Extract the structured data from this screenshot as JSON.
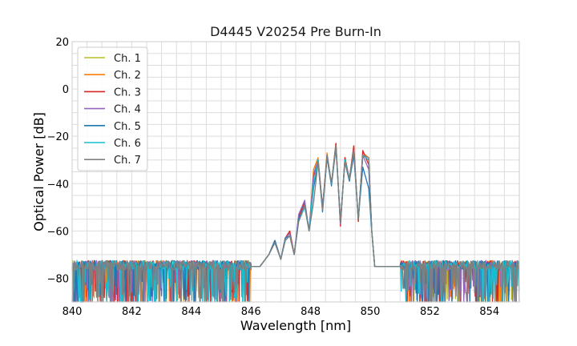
{
  "chart_data": {
    "type": "line",
    "title": "D4445 V20254 Pre Burn-In",
    "xlabel": "Wavelength [nm]",
    "ylabel": "Optical Power [dB]",
    "xlim": [
      840,
      855
    ],
    "ylim": [
      -90,
      20
    ],
    "xticks": [
      840,
      842,
      844,
      846,
      848,
      850,
      852,
      854
    ],
    "xtick_labels": [
      "840",
      "842",
      "844",
      "846",
      "848",
      "850",
      "852",
      "854"
    ],
    "yticks": [
      20,
      0,
      -20,
      -40,
      -60,
      -80
    ],
    "ytick_labels": [
      "20",
      "0",
      "−20",
      "−40",
      "−60",
      "−80"
    ],
    "grid": true,
    "legend_position": "top-left",
    "noise_floor_db": -75,
    "x": [
      846.0,
      846.3,
      846.6,
      846.8,
      847.0,
      847.15,
      847.3,
      847.45,
      847.6,
      847.8,
      847.95,
      848.1,
      848.25,
      848.4,
      848.55,
      848.7,
      848.85,
      849.0,
      849.15,
      849.3,
      849.45,
      849.6,
      849.75,
      849.95,
      850.05,
      850.15,
      850.3,
      850.6,
      851.0
    ],
    "series": [
      {
        "name": "Ch. 1",
        "color": "#bcbd22",
        "values": [
          -75,
          -75,
          -70,
          -64,
          -72,
          -63,
          -61,
          -70,
          -55,
          -50,
          -60,
          -34,
          -30,
          -50,
          -28,
          -40,
          -23,
          -57,
          -30,
          -38,
          -25,
          -56,
          -28,
          -30,
          -60,
          -75,
          -75,
          -75,
          -75
        ]
      },
      {
        "name": "Ch. 2",
        "color": "#ff7f0e",
        "values": [
          -75,
          -75,
          -70,
          -64,
          -72,
          -63,
          -60,
          -70,
          -55,
          -49,
          -60,
          -34,
          -29,
          -50,
          -27,
          -40,
          -23,
          -57,
          -29,
          -38,
          -24,
          -56,
          -27,
          -29,
          -60,
          -75,
          -75,
          -75,
          -75
        ]
      },
      {
        "name": "Ch. 3",
        "color": "#d62728",
        "values": [
          -75,
          -75,
          -70,
          -64,
          -72,
          -63,
          -60,
          -70,
          -54,
          -48,
          -60,
          -37,
          -30,
          -50,
          -28,
          -40,
          -23,
          -58,
          -29,
          -38,
          -24,
          -56,
          -26,
          -32,
          -60,
          -75,
          -75,
          -75,
          -75
        ]
      },
      {
        "name": "Ch. 4",
        "color": "#9467bd",
        "values": [
          -75,
          -75,
          -70,
          -64,
          -72,
          -63,
          -61,
          -70,
          -53,
          -47,
          -60,
          -36,
          -30,
          -50,
          -29,
          -40,
          -24,
          -57,
          -30,
          -38,
          -26,
          -55,
          -28,
          -34,
          -60,
          -75,
          -75,
          -75,
          -75
        ]
      },
      {
        "name": "Ch. 5",
        "color": "#1f77b4",
        "values": [
          -75,
          -75,
          -70,
          -64,
          -72,
          -63,
          -62,
          -70,
          -55,
          -49,
          -60,
          -42,
          -31,
          -52,
          -29,
          -41,
          -25,
          -56,
          -31,
          -39,
          -28,
          -55,
          -33,
          -42,
          -60,
          -75,
          -75,
          -75,
          -75
        ]
      },
      {
        "name": "Ch. 6",
        "color": "#17becf",
        "values": [
          -75,
          -75,
          -70,
          -65,
          -72,
          -64,
          -62,
          -70,
          -56,
          -50,
          -60,
          -40,
          -30,
          -51,
          -28,
          -40,
          -24,
          -56,
          -30,
          -38,
          -26,
          -55,
          -28,
          -30,
          -60,
          -75,
          -75,
          -75,
          -75
        ]
      },
      {
        "name": "Ch. 7",
        "color": "#7f7f7f",
        "values": [
          -75,
          -75,
          -70,
          -65,
          -72,
          -64,
          -62,
          -70,
          -56,
          -49,
          -60,
          -48,
          -31,
          -51,
          -28,
          -40,
          -24,
          -56,
          -31,
          -38,
          -26,
          -55,
          -28,
          -29,
          -60,
          -75,
          -75,
          -75,
          -75
        ]
      }
    ]
  }
}
